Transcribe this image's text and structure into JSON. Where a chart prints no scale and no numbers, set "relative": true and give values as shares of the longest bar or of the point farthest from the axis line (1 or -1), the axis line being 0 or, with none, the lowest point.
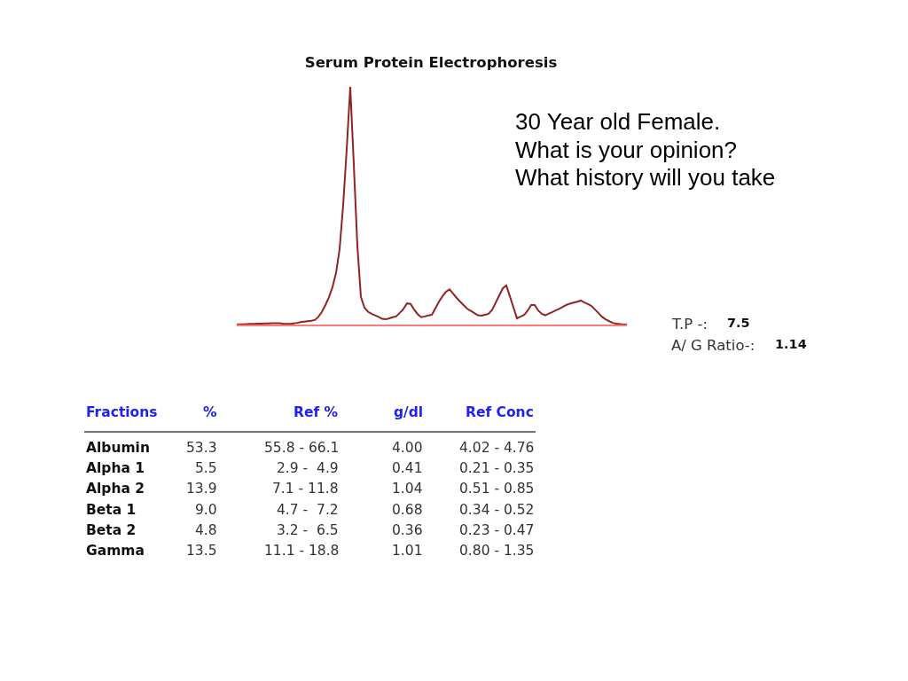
{
  "chart_data": {
    "type": "line",
    "title": "Serum Protein Electrophoresis",
    "relative": true,
    "categories": [
      null,
      null,
      null,
      null,
      null,
      null,
      null,
      null,
      null,
      null,
      null,
      null,
      null,
      null,
      null,
      null,
      null,
      null,
      null,
      null,
      null,
      null,
      null,
      null,
      null,
      null,
      null,
      null,
      null,
      null,
      null,
      null,
      null,
      null,
      null,
      null,
      null,
      null,
      null,
      null,
      null,
      null,
      null,
      null,
      null,
      null,
      null,
      null,
      null,
      null,
      null,
      null,
      null,
      null,
      null,
      null,
      null,
      null,
      null,
      null,
      null,
      null,
      null,
      null,
      null,
      null,
      null,
      null,
      null,
      null,
      null,
      null,
      null,
      null,
      null,
      null,
      null,
      null,
      null,
      null,
      null,
      null,
      null,
      null,
      null,
      null,
      null,
      null,
      null,
      null,
      null,
      null,
      null,
      null,
      null,
      null,
      null,
      null,
      null,
      null,
      null,
      null,
      null,
      null,
      null,
      null,
      null,
      null,
      null,
      null,
      null
    ],
    "series": [
      {
        "color": "#8e2424",
        "values": [
          0,
          0.001,
          0.001,
          0.002,
          0.003,
          0.003,
          0.004,
          0.004,
          0.005,
          0.005,
          0.006,
          0.006,
          0.006,
          0.004,
          0.003,
          0.003,
          0.005,
          0.007,
          0.01,
          0.012,
          0.014,
          0.016,
          0.019,
          0.032,
          0.053,
          0.082,
          0.115,
          0.158,
          0.218,
          0.318,
          0.502,
          0.738,
          1,
          0.675,
          0.332,
          0.116,
          0.071,
          0.054,
          0.045,
          0.039,
          0.032,
          0.024,
          0.022,
          0.026,
          0.031,
          0.035,
          0.05,
          0.066,
          0.089,
          0.087,
          0.063,
          0.044,
          0.031,
          0.034,
          0.038,
          0.041,
          0.068,
          0.096,
          0.119,
          0.138,
          0.148,
          0.13,
          0.112,
          0.096,
          0.081,
          0.066,
          0.057,
          0.048,
          0.039,
          0.037,
          0.041,
          0.045,
          0.062,
          0.092,
          0.122,
          0.152,
          0.164,
          0.119,
          0.073,
          0.026,
          0.033,
          0.04,
          0.058,
          0.082,
          0.082,
          0.059,
          0.045,
          0.039,
          0.046,
          0.053,
          0.06,
          0.067,
          0.075,
          0.083,
          0.088,
          0.092,
          0.096,
          0.101,
          0.093,
          0.086,
          0.078,
          0.063,
          0.048,
          0.032,
          0.022,
          0.014,
          0.007,
          0.004,
          0.002,
          0,
          0
        ]
      }
    ],
    "annotations": [
      "30 Year old Female.",
      "What is your opinion?",
      "What history will you take",
      "T.P -:",
      "7.5",
      "A/ G Ratio-:",
      "1.14",
      "Fractions",
      "%",
      "Ref %",
      "g/dl",
      "Ref Conc",
      "Albumin",
      "53.3",
      "55.8 - 66.1",
      "4.00",
      "4.02 - 4.76",
      "Alpha 1",
      "5.5",
      "2.9 -  4.9",
      "0.41",
      "0.21 - 0.35",
      "Alpha 2",
      "13.9",
      "7.1 - 11.8",
      "1.04",
      "0.51 - 0.85",
      "Beta 1",
      "9.0",
      "4.7 -  7.2",
      "0.68",
      "0.34 - 0.52",
      "Beta 2",
      "4.8",
      "3.2 -  6.5",
      "0.36",
      "0.23 - 0.47",
      "Gamma",
      "13.5",
      "11.1 - 18.8",
      "1.01",
      "0.80 - 1.35"
    ]
  }
}
